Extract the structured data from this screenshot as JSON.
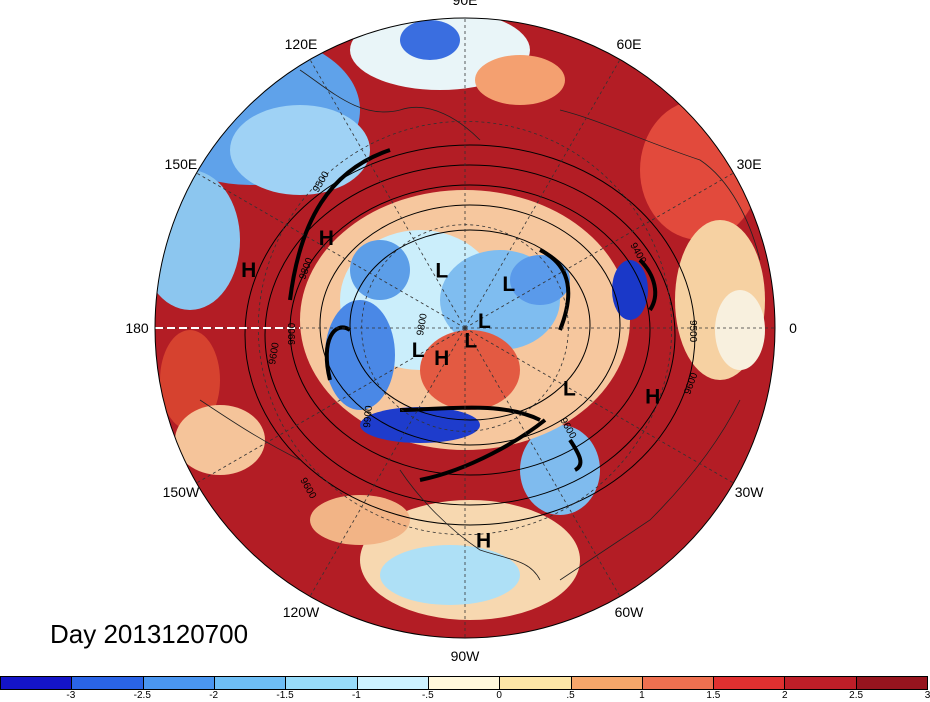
{
  "title": "Day 2013120700",
  "longitude_labels": [
    {
      "text": "90E",
      "lon": 90
    },
    {
      "text": "60E",
      "lon": 60
    },
    {
      "text": "30E",
      "lon": 30
    },
    {
      "text": "0",
      "lon": 0
    },
    {
      "text": "30W",
      "lon": -30
    },
    {
      "text": "60W",
      "lon": -60
    },
    {
      "text": "90W",
      "lon": -90
    },
    {
      "text": "120W",
      "lon": -120
    },
    {
      "text": "150W",
      "lon": -150
    },
    {
      "text": "180",
      "lon": 180
    },
    {
      "text": "150E",
      "lon": 150
    },
    {
      "text": "120E",
      "lon": 120
    }
  ],
  "pressure_centers": [
    {
      "label": "H",
      "lon": 147,
      "lat": 42
    },
    {
      "label": "H",
      "lon": 165,
      "lat": 25
    },
    {
      "label": "L",
      "lon": 112,
      "lat": 72
    },
    {
      "label": "L",
      "lon": 45,
      "lat": 72
    },
    {
      "label": "L",
      "lon": 20,
      "lat": 84
    },
    {
      "label": "L",
      "lon": -155,
      "lat": 75
    },
    {
      "label": "H",
      "lon": -128,
      "lat": 79
    },
    {
      "label": "L",
      "lon": -65,
      "lat": 86
    },
    {
      "label": "L",
      "lon": -30,
      "lat": 55
    },
    {
      "label": "H",
      "lon": -20,
      "lat": 32
    },
    {
      "label": "H",
      "lon": -85,
      "lat": 28
    }
  ],
  "contour_labels": [
    "9500",
    "9600",
    "9800",
    "9900",
    "9400",
    "9600",
    "9500",
    "9600",
    "9800",
    "9600",
    "9900"
  ],
  "colorbar": {
    "colors": [
      "#1414c8",
      "#2a64e6",
      "#4a96f0",
      "#6ebef5",
      "#98dcfa",
      "#cdf2ff",
      "#fff8dc",
      "#fde6a6",
      "#f6a66a",
      "#ee7050",
      "#e03030",
      "#be1e28",
      "#96141e"
    ],
    "ticks": [
      "-3",
      "-2.5",
      "-2",
      "-1.5",
      "-1",
      "-.5",
      "0",
      ".5",
      "1",
      "1.5",
      "2",
      "2.5",
      "3"
    ]
  }
}
